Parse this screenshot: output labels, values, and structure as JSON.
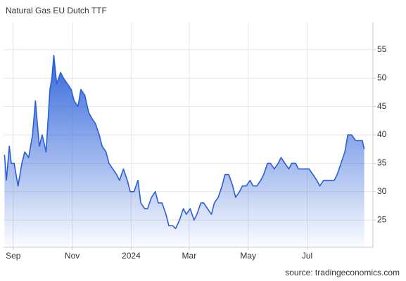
{
  "chart_data": {
    "type": "area",
    "title": "Natural Gas EU Dutch TTF",
    "source": "source: tradingeconomics.com",
    "color": "#2a5fd8",
    "grid": true,
    "x": [
      -9,
      -7,
      -4,
      -2,
      1,
      5,
      9,
      12,
      16,
      20,
      23,
      27,
      30,
      34,
      38,
      40,
      42,
      45,
      49,
      52,
      56,
      60,
      63,
      67,
      70,
      74,
      78,
      81,
      85,
      89,
      92,
      96,
      99,
      103,
      107,
      110,
      114,
      118,
      121,
      125,
      129,
      132,
      136,
      139,
      143,
      147,
      150,
      154,
      158,
      161,
      165,
      168,
      172,
      176,
      179,
      183,
      187,
      190,
      194,
      197,
      201,
      205,
      208,
      212,
      216,
      219,
      223,
      227,
      230,
      234,
      237,
      241,
      245,
      248,
      252,
      256,
      259,
      263,
      266,
      270,
      274,
      277,
      281,
      285,
      288,
      292,
      295,
      299,
      303,
      306,
      310,
      314,
      317,
      321,
      325,
      328,
      332,
      335,
      339,
      343,
      346,
      350,
      354,
      357,
      361,
      363
    ],
    "values": [
      36.5,
      32,
      38,
      35,
      35,
      31,
      35,
      37,
      36,
      40,
      46,
      38,
      40,
      37,
      48,
      50,
      54,
      49,
      51,
      50,
      49,
      48,
      46,
      45,
      48,
      47,
      44,
      43,
      42,
      40,
      38,
      37,
      35,
      34,
      33,
      32,
      34,
      32,
      30,
      30,
      32,
      28,
      27,
      27,
      29,
      30,
      28,
      28,
      26,
      24,
      24,
      23.5,
      25,
      27,
      26,
      27,
      25,
      26,
      28,
      28,
      27,
      26,
      28,
      29,
      31,
      33,
      33,
      31,
      29,
      30,
      31,
      31,
      32,
      31,
      31,
      32,
      33,
      35,
      35,
      34,
      35,
      36,
      35,
      34,
      35,
      35,
      34,
      34,
      34,
      34,
      33,
      32,
      31,
      32,
      32,
      32,
      32,
      33,
      35,
      37,
      40,
      40,
      39,
      39,
      39,
      37.5
    ],
    "xlim": [
      -10,
      372
    ],
    "ylim": [
      20.2,
      59.8
    ],
    "xticks": [
      {
        "value": 0,
        "label": "Sep"
      },
      {
        "value": 61,
        "label": "Nov"
      },
      {
        "value": 122,
        "label": "2024"
      },
      {
        "value": 182,
        "label": "Mar"
      },
      {
        "value": 243,
        "label": "May"
      },
      {
        "value": 304,
        "label": "Jul"
      }
    ],
    "yticks": [
      25,
      30,
      35,
      40,
      45,
      50,
      55
    ]
  }
}
